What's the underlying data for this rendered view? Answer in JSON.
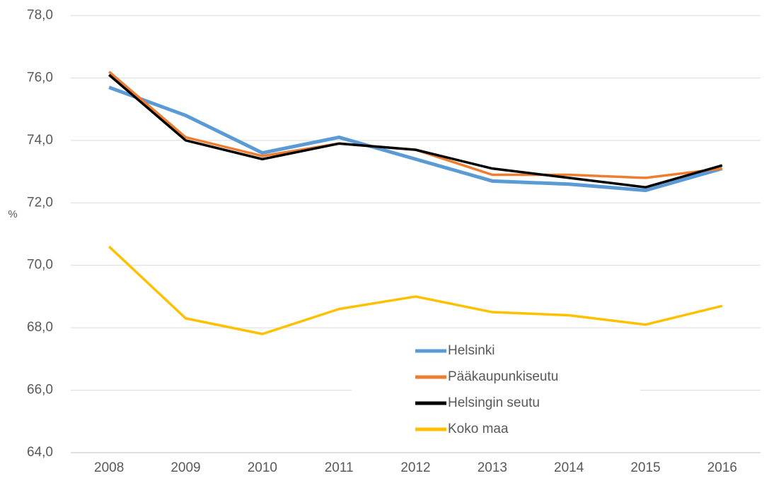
{
  "chart_data": {
    "type": "line",
    "y_label": "%",
    "categories": [
      "2008",
      "2009",
      "2010",
      "2011",
      "2012",
      "2013",
      "2014",
      "2015",
      "2016"
    ],
    "series": [
      {
        "name": "Helsinki",
        "color": "#5b9bd5",
        "width": 5,
        "values": [
          75.7,
          74.8,
          73.6,
          74.1,
          73.4,
          72.7,
          72.6,
          72.4,
          73.1
        ]
      },
      {
        "name": "Pääkaupunkiseutu",
        "color": "#ed7d31",
        "width": 3.5,
        "values": [
          76.2,
          74.1,
          73.5,
          73.9,
          73.7,
          72.9,
          72.9,
          72.8,
          73.1
        ]
      },
      {
        "name": "Helsingin seutu",
        "color": "#000000",
        "width": 3.5,
        "values": [
          76.1,
          74.0,
          73.4,
          73.9,
          73.7,
          73.1,
          72.8,
          72.5,
          73.2
        ]
      },
      {
        "name": "Koko maa",
        "color": "#ffc000",
        "width": 3.5,
        "values": [
          70.6,
          68.3,
          67.8,
          68.6,
          69.0,
          68.5,
          68.4,
          68.1,
          68.7
        ]
      }
    ],
    "ylim": [
      64,
      78
    ],
    "yticks": [
      {
        "value": 64,
        "label": "64,0"
      },
      {
        "value": 66,
        "label": "66,0"
      },
      {
        "value": 68,
        "label": "68,0"
      },
      {
        "value": 70,
        "label": "70,0"
      },
      {
        "value": 72,
        "label": "72,0"
      },
      {
        "value": 74,
        "label": "74,0"
      },
      {
        "value": 76,
        "label": "76,0"
      },
      {
        "value": 78,
        "label": "78,0"
      }
    ],
    "grid": true,
    "legend": "bottom-center"
  }
}
